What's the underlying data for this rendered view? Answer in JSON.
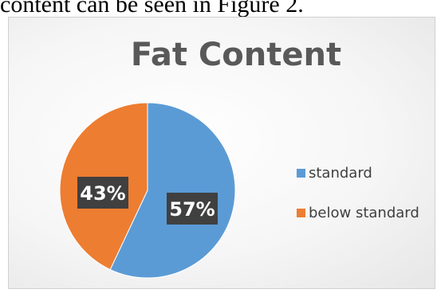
{
  "document": {
    "text_line": "content can be seen in Figure 2."
  },
  "chart_data": {
    "type": "pie",
    "title": "Fat Content",
    "categories": [
      "standard",
      "below standard"
    ],
    "values": [
      57,
      43
    ],
    "data_labels": [
      "57%",
      "43%"
    ],
    "colors": [
      "#5b9bd5",
      "#ed7d31"
    ],
    "label_box_color": "#404040",
    "label_text_color": "#ffffff",
    "legend_position": "right"
  }
}
